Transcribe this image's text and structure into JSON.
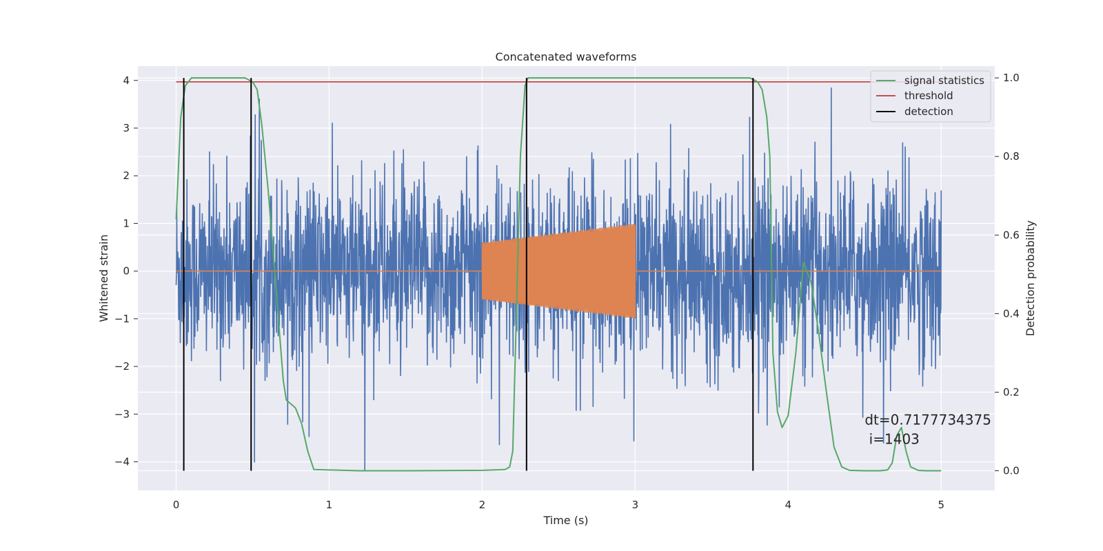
{
  "chart_data": {
    "type": "line",
    "title": "Concatenated waveforms",
    "xlabel": "Time (s)",
    "ylabel": "Whitened strain",
    "ylabel_right": "Detection probability",
    "xlim": [
      -0.25,
      5.35
    ],
    "ylim": [
      -4.6,
      4.3
    ],
    "ylim_right": [
      -0.05,
      1.03
    ],
    "grid": true,
    "background": "#eaeaf2",
    "legend_position": "top-right",
    "x_ticks": [
      "0",
      "1",
      "2",
      "3",
      "4",
      "5"
    ],
    "x_tick_values": [
      0,
      1,
      2,
      3,
      4,
      5
    ],
    "y_ticks": [
      "4",
      "3",
      "2",
      "1",
      "0",
      "−1",
      "−2",
      "−3",
      "−4"
    ],
    "y_tick_values": [
      4,
      3,
      2,
      1,
      0,
      -1,
      -2,
      -3,
      -4
    ],
    "y_right_ticks": [
      "1.0",
      "0.8",
      "0.6",
      "0.4",
      "0.2",
      "0.0"
    ],
    "y_right_tick_values": [
      1.0,
      0.8,
      0.6,
      0.4,
      0.2,
      0.0
    ],
    "series": [
      {
        "key": "strain",
        "color": "#4c72b0",
        "axis": "left",
        "t_range": [
          0,
          5
        ],
        "envelope": 2.2,
        "peaks_max": 3.85,
        "peaks_min": -4.2
      },
      {
        "key": "injected",
        "color": "#dd8452",
        "axis": "left",
        "segments": [
          {
            "t_range": [
              0,
              2
            ],
            "value": 0
          },
          {
            "t_range": [
              2,
              3
            ],
            "amp_start": 0.6,
            "amp_end": 1.0,
            "chirp": true
          },
          {
            "t_range": [
              3,
              5
            ],
            "value": 0
          }
        ]
      },
      {
        "name": "signal statistics",
        "color": "#55a868",
        "axis": "right",
        "x": [
          0,
          0.03,
          0.06,
          0.1,
          0.15,
          0.3,
          0.45,
          0.5,
          0.53,
          0.56,
          0.6,
          0.65,
          0.68,
          0.7,
          0.72,
          0.75,
          0.78,
          0.82,
          0.86,
          0.9,
          1.2,
          1.5,
          2.0,
          2.15,
          2.18,
          2.2,
          2.22,
          2.25,
          2.28,
          2.3,
          2.35,
          2.5,
          3.0,
          3.5,
          3.75,
          3.8,
          3.83,
          3.86,
          3.88,
          3.9,
          3.93,
          3.96,
          4.0,
          4.05,
          4.1,
          4.15,
          4.2,
          4.25,
          4.3,
          4.35,
          4.4,
          4.5,
          4.6,
          4.65,
          4.68,
          4.71,
          4.74,
          4.77,
          4.8,
          4.85,
          4.9,
          5.0
        ],
        "y": [
          0.64,
          0.9,
          0.98,
          1.0,
          1.0,
          1.0,
          1.0,
          0.99,
          0.97,
          0.88,
          0.72,
          0.48,
          0.33,
          0.23,
          0.18,
          0.17,
          0.16,
          0.12,
          0.05,
          0.003,
          0.0,
          0.0,
          0.001,
          0.003,
          0.01,
          0.05,
          0.35,
          0.8,
          0.98,
          1.0,
          1.0,
          1.0,
          1.0,
          1.0,
          1.0,
          0.99,
          0.97,
          0.9,
          0.8,
          0.3,
          0.15,
          0.11,
          0.14,
          0.3,
          0.53,
          0.48,
          0.35,
          0.2,
          0.06,
          0.01,
          0.001,
          0.0,
          0.0,
          0.002,
          0.02,
          0.09,
          0.11,
          0.05,
          0.01,
          0.001,
          0.0,
          0.0
        ]
      },
      {
        "name": "threshold",
        "color": "#c44e52",
        "axis": "right",
        "x": [
          0,
          5
        ],
        "y": [
          0.99,
          0.99
        ]
      },
      {
        "name": "detection",
        "color": "#000000",
        "axis": "right",
        "type": "vlines",
        "x": [
          0.05,
          0.49,
          2.29,
          3.77
        ],
        "y_range": [
          0.0,
          1.0
        ]
      }
    ],
    "legend": [
      "signal statistics",
      "threshold",
      "detection"
    ],
    "annotation": {
      "line1": "dt=0.7177734375",
      "line2": " i=1403",
      "x": 4.5,
      "y": -3.25
    }
  }
}
